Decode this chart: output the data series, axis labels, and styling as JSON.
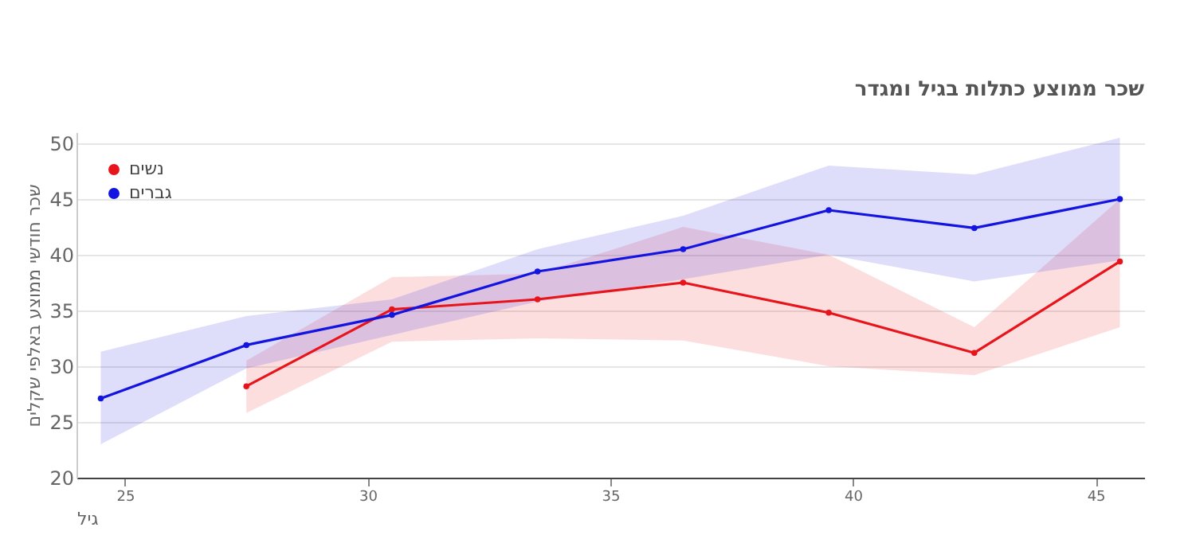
{
  "chart_data": {
    "type": "line",
    "title": "שכר ממוצע כתלות בגיל ומגדר",
    "xlabel": "גיל",
    "ylabel": "שכר חודשי ממוצע באלפי שקלים",
    "xlim": [
      24,
      46
    ],
    "xticks": [
      25,
      30,
      35,
      40,
      45
    ],
    "ylim": [
      20,
      51
    ],
    "yticks": [
      20,
      25,
      30,
      35,
      40,
      45,
      50
    ],
    "grid": "y",
    "legend": "top left",
    "marker": "circle",
    "line_style": "solid",
    "series": [
      {
        "name": "נשים",
        "color": "#e8141c",
        "x": [
          27.5,
          30.5,
          33.5,
          36.5,
          39.5,
          42.5,
          45.5
        ],
        "values": [
          28.2,
          35.1,
          36.0,
          37.5,
          34.8,
          31.2,
          39.4
        ],
        "lower": [
          25.8,
          32.2,
          32.5,
          32.3,
          30.0,
          29.2,
          33.5
        ],
        "upper": [
          30.5,
          38.0,
          38.3,
          42.5,
          40.0,
          33.5,
          45.0
        ]
      },
      {
        "name": "גברים",
        "color": "#1414e0",
        "x": [
          24.5,
          27.5,
          30.5,
          33.5,
          36.5,
          39.5,
          42.5,
          45.5
        ],
        "values": [
          27.1,
          31.9,
          34.6,
          38.5,
          40.5,
          44.0,
          42.4,
          45.0
        ],
        "lower": [
          23.0,
          29.8,
          32.8,
          35.8,
          37.8,
          40.0,
          37.6,
          39.5
        ],
        "upper": [
          31.3,
          34.5,
          36.0,
          40.5,
          43.5,
          48.0,
          47.2,
          50.5
        ]
      }
    ]
  }
}
